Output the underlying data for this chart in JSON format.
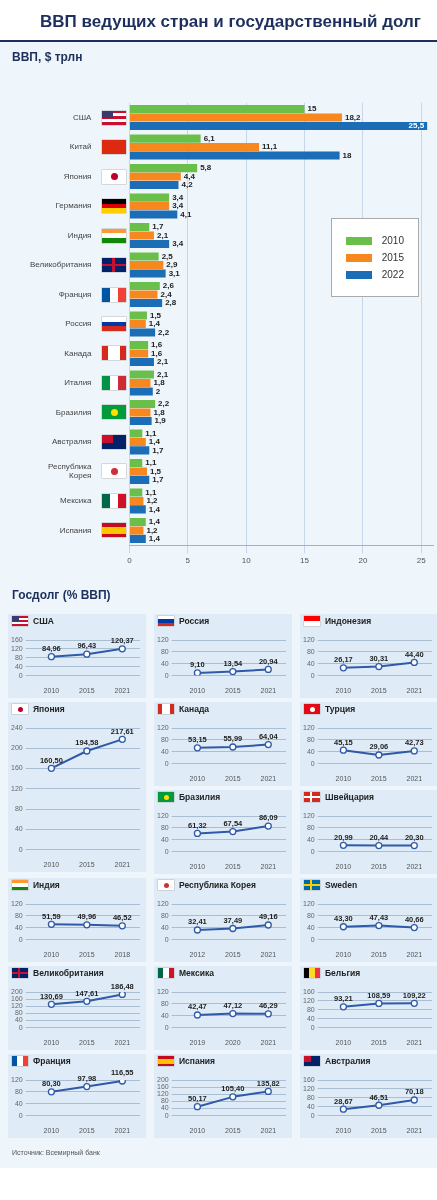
{
  "chart_data": [
    {
      "type": "bar",
      "title": "ВВП ведущих стран и государственный долг",
      "subtitle": "ВВП, $ трлн",
      "orientation": "horizontal",
      "categories": [
        "США",
        "Китай",
        "Япония",
        "Германия",
        "Индия",
        "Великобритания",
        "Франция",
        "Россия",
        "Канада",
        "Италия",
        "Бразилия",
        "Австралия",
        "Республика Корея",
        "Мексика",
        "Испания"
      ],
      "series": [
        {
          "name": "2010",
          "color": "#6abf4b",
          "values": [
            15,
            6.1,
            5.8,
            3.4,
            1.7,
            2.5,
            2.6,
            1.5,
            1.6,
            2.1,
            2.2,
            1.1,
            1.1,
            1.1,
            1.4
          ],
          "value_labels": [
            "15",
            "6,1",
            "5,8",
            "3,4",
            "1,7",
            "2,5",
            "2,6",
            "1,5",
            "1,6",
            "2,1",
            "2,2",
            "1,1",
            "1,1",
            "1,1",
            "1,4"
          ]
        },
        {
          "name": "2015",
          "color": "#f7871f",
          "values": [
            18.2,
            11.1,
            4.4,
            3.4,
            2.1,
            2.9,
            2.4,
            1.4,
            1.6,
            1.8,
            1.8,
            1.4,
            1.5,
            1.2,
            1.2
          ],
          "value_labels": [
            "18,2",
            "11,1",
            "4,4",
            "3,4",
            "2,1",
            "2,9",
            "2,4",
            "1,4",
            "1,6",
            "1,8",
            "1,8",
            "1,4",
            "1,5",
            "1,2",
            "1,2"
          ]
        },
        {
          "name": "2022",
          "color": "#1b6db5",
          "values": [
            25.5,
            18,
            4.2,
            4.1,
            3.4,
            3.1,
            2.8,
            2.2,
            2.1,
            2,
            1.9,
            1.7,
            1.7,
            1.4,
            1.4
          ],
          "value_labels": [
            "25,5",
            "18",
            "4,2",
            "4,1",
            "3,4",
            "3,1",
            "2,8",
            "2,2",
            "2,1",
            "2",
            "1,9",
            "1,7",
            "1,7",
            "1,4",
            "1,4"
          ]
        }
      ],
      "xlim": [
        0,
        26
      ],
      "xticks": [
        0,
        5,
        10,
        15,
        20,
        25
      ],
      "grid": "x",
      "legend": "right"
    },
    {
      "type": "line",
      "title": "США",
      "subtitle": "Госдолг (% ВВП)",
      "categories": [
        "2010",
        "2015",
        "2021"
      ],
      "series": [
        {
          "color": "#2f5aa8",
          "values": [
            84.96,
            96.43,
            120.37
          ],
          "value_labels": [
            "84,96",
            "96,43",
            "120,37"
          ]
        }
      ],
      "ylim": [
        0,
        160
      ],
      "yticks": [
        0,
        40,
        80,
        120,
        160
      ],
      "grid": "y",
      "marker": "circle"
    },
    {
      "type": "line",
      "title": "Россия",
      "categories": [
        "2010",
        "2015",
        "2021"
      ],
      "series": [
        {
          "color": "#2f5aa8",
          "values": [
            9.1,
            13.54,
            20.94
          ],
          "value_labels": [
            "9,10",
            "13,54",
            "20,94"
          ]
        }
      ],
      "ylim": [
        0,
        120
      ],
      "yticks": [
        0,
        40,
        80,
        120
      ],
      "grid": "y",
      "marker": "circle"
    },
    {
      "type": "line",
      "title": "Индонезия",
      "categories": [
        "2010",
        "2015",
        "2021"
      ],
      "series": [
        {
          "color": "#2f5aa8",
          "values": [
            26.17,
            30.31,
            44.4
          ],
          "value_labels": [
            "26,17",
            "30,31",
            "44,40"
          ]
        }
      ],
      "ylim": [
        0,
        120
      ],
      "yticks": [
        0,
        40,
        80,
        120
      ],
      "grid": "y",
      "marker": "circle"
    },
    {
      "type": "line",
      "title": "Япония",
      "categories": [
        "2010",
        "2015",
        "2021"
      ],
      "series": [
        {
          "color": "#2f5aa8",
          "values": [
            160.5,
            194.58,
            217.61
          ],
          "value_labels": [
            "160,50",
            "194,58",
            "217,61"
          ]
        }
      ],
      "ylim": [
        0,
        240
      ],
      "yticks": [
        0,
        40,
        80,
        120,
        160,
        200,
        240
      ],
      "grid": "y",
      "marker": "circle"
    },
    {
      "type": "line",
      "title": "Канада",
      "categories": [
        "2010",
        "2015",
        "2021"
      ],
      "series": [
        {
          "color": "#2f5aa8",
          "values": [
            53.15,
            55.99,
            64.04
          ],
          "value_labels": [
            "53,15",
            "55,99",
            "64,04"
          ]
        }
      ],
      "ylim": [
        0,
        120
      ],
      "yticks": [
        0,
        40,
        80,
        120
      ],
      "grid": "y",
      "marker": "circle"
    },
    {
      "type": "line",
      "title": "Турция",
      "categories": [
        "2010",
        "2015",
        "2021"
      ],
      "series": [
        {
          "color": "#2f5aa8",
          "values": [
            45.15,
            29.06,
            42.73
          ],
          "value_labels": [
            "45,15",
            "29,06",
            "42,73"
          ]
        }
      ],
      "ylim": [
        0,
        120
      ],
      "yticks": [
        0,
        40,
        80,
        120
      ],
      "grid": "y",
      "marker": "circle"
    },
    {
      "type": "line",
      "title": "Бразилия",
      "categories": [
        "2010",
        "2015",
        "2021"
      ],
      "series": [
        {
          "color": "#2f5aa8",
          "values": [
            61.32,
            67.54,
            86.09
          ],
          "value_labels": [
            "61,32",
            "67,54",
            "86,09"
          ]
        }
      ],
      "ylim": [
        0,
        120
      ],
      "yticks": [
        0,
        40,
        80,
        120
      ],
      "grid": "y",
      "marker": "circle"
    },
    {
      "type": "line",
      "title": "Швейцария",
      "categories": [
        "2010",
        "2015",
        "2021"
      ],
      "series": [
        {
          "color": "#2f5aa8",
          "values": [
            20.99,
            20.44,
            20.3
          ],
          "value_labels": [
            "20,99",
            "20,44",
            "20,30"
          ]
        }
      ],
      "ylim": [
        0,
        120
      ],
      "yticks": [
        0,
        40,
        80,
        120
      ],
      "grid": "y",
      "marker": "circle"
    },
    {
      "type": "line",
      "title": "Индия",
      "categories": [
        "2010",
        "2015",
        "2018"
      ],
      "series": [
        {
          "color": "#2f5aa8",
          "values": [
            51.59,
            49.96,
            46.52
          ],
          "value_labels": [
            "51,59",
            "49,96",
            "46,52"
          ]
        }
      ],
      "ylim": [
        0,
        120
      ],
      "yticks": [
        0,
        40,
        80,
        120
      ],
      "grid": "y",
      "marker": "circle"
    },
    {
      "type": "line",
      "title": "Республика Корея",
      "categories": [
        "2012",
        "2015",
        "2021"
      ],
      "series": [
        {
          "color": "#2f5aa8",
          "values": [
            32.41,
            37.49,
            49.16
          ],
          "value_labels": [
            "32,41",
            "37,49",
            "49,16"
          ]
        }
      ],
      "ylim": [
        0,
        120
      ],
      "yticks": [
        0,
        40,
        80,
        120
      ],
      "grid": "y",
      "marker": "circle"
    },
    {
      "type": "line",
      "title": "Sweden",
      "categories": [
        "2010",
        "2015",
        "2021"
      ],
      "series": [
        {
          "color": "#2f5aa8",
          "values": [
            43.3,
            47.43,
            40.66
          ],
          "value_labels": [
            "43,30",
            "47,43",
            "40,66"
          ]
        }
      ],
      "ylim": [
        0,
        120
      ],
      "yticks": [
        0,
        40,
        80,
        120
      ],
      "grid": "y",
      "marker": "circle"
    },
    {
      "type": "line",
      "title": "Великобритания",
      "categories": [
        "2010",
        "2015",
        "2021"
      ],
      "series": [
        {
          "color": "#2f5aa8",
          "values": [
            130.69,
            147.61,
            186.48
          ],
          "value_labels": [
            "130,69",
            "147,61",
            "186,48"
          ]
        }
      ],
      "ylim": [
        0,
        200
      ],
      "yticks": [
        0,
        40,
        80,
        120,
        160,
        200
      ],
      "grid": "y",
      "marker": "circle"
    },
    {
      "type": "line",
      "title": "Мексика",
      "categories": [
        "2019",
        "2020",
        "2021"
      ],
      "series": [
        {
          "color": "#2f5aa8",
          "values": [
            42.47,
            47.12,
            46.29
          ],
          "value_labels": [
            "42,47",
            "47,12",
            "46,29"
          ]
        }
      ],
      "ylim": [
        0,
        120
      ],
      "yticks": [
        0,
        40,
        80,
        120
      ],
      "grid": "y",
      "marker": "circle"
    },
    {
      "type": "line",
      "title": "Бельгия",
      "categories": [
        "2010",
        "2015",
        "2021"
      ],
      "series": [
        {
          "color": "#2f5aa8",
          "values": [
            93.21,
            108.59,
            109.22
          ],
          "value_labels": [
            "93,21",
            "108,59",
            "109,22"
          ]
        }
      ],
      "ylim": [
        0,
        160
      ],
      "yticks": [
        0,
        40,
        80,
        120,
        160
      ],
      "grid": "y",
      "marker": "circle"
    },
    {
      "type": "line",
      "title": "Франция",
      "categories": [
        "2010",
        "2015",
        "2021"
      ],
      "series": [
        {
          "color": "#2f5aa8",
          "values": [
            80.3,
            97.98,
            116.55
          ],
          "value_labels": [
            "80,30",
            "97,98",
            "116,55"
          ]
        }
      ],
      "ylim": [
        0,
        120
      ],
      "yticks": [
        0,
        40,
        80,
        120
      ],
      "grid": "y",
      "marker": "circle",
      "annotations": [
        "Источник: Всемирный банк"
      ]
    },
    {
      "type": "line",
      "title": "Испания",
      "categories": [
        "2010",
        "2015",
        "2021"
      ],
      "series": [
        {
          "color": "#2f5aa8",
          "values": [
            50.17,
            105.4,
            135.82
          ],
          "value_labels": [
            "50,17",
            "105,40",
            "135,82"
          ]
        }
      ],
      "ylim": [
        0,
        200
      ],
      "yticks": [
        0,
        40,
        80,
        120,
        160,
        200
      ],
      "grid": "y",
      "marker": "circle"
    },
    {
      "type": "line",
      "title": "Австралия",
      "categories": [
        "2010",
        "2015",
        "2021"
      ],
      "series": [
        {
          "color": "#2f5aa8",
          "values": [
            28.67,
            46.51,
            70.18
          ],
          "value_labels": [
            "28,67",
            "46,51",
            "70,18"
          ]
        }
      ],
      "ylim": [
        0,
        160
      ],
      "yticks": [
        0,
        40,
        80,
        120,
        160
      ],
      "grid": "y",
      "marker": "circle"
    }
  ]
}
